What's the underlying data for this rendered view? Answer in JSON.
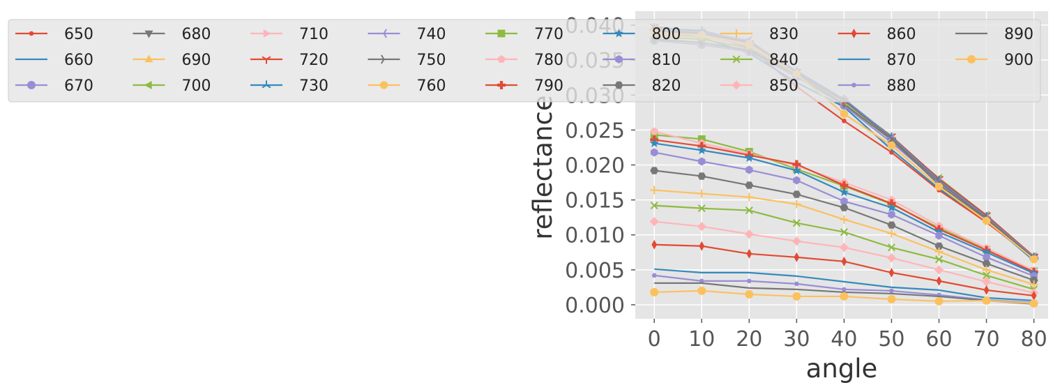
{
  "chart_data": {
    "type": "line",
    "xlabel": "angle",
    "ylabel": "reflectance",
    "x": [
      0,
      10,
      20,
      30,
      40,
      50,
      60,
      70,
      80
    ],
    "xticks": [
      "0",
      "10",
      "20",
      "30",
      "40",
      "50",
      "60",
      "70",
      "80"
    ],
    "yticks": [
      "0.000",
      "0.005",
      "0.010",
      "0.015",
      "0.020",
      "0.025",
      "0.030",
      "0.035",
      "0.040"
    ],
    "xlim": [
      -4,
      83
    ],
    "ylim": [
      -0.002,
      0.042
    ],
    "grid": true,
    "legend_position": "top",
    "legend_columns": 9,
    "series": [
      {
        "name": "650",
        "color": "#E24A33",
        "marker": "point",
        "values": [
          0.0395,
          0.0388,
          0.0368,
          0.0312,
          0.0263,
          0.0218,
          0.0164,
          0.0118,
          0.0066
        ]
      },
      {
        "name": "660",
        "color": "#348ABD",
        "marker": "pixel",
        "values": [
          0.0392,
          0.0382,
          0.036,
          0.0318,
          0.0283,
          0.0222,
          0.0166,
          0.0121,
          0.0063
        ]
      },
      {
        "name": "670",
        "color": "#988ED5",
        "marker": "circle",
        "values": [
          0.0378,
          0.0372,
          0.0362,
          0.0326,
          0.0285,
          0.0232,
          0.0175,
          0.0124,
          0.0067
        ]
      },
      {
        "name": "680",
        "color": "#777777",
        "marker": "triangle_down",
        "values": [
          0.038,
          0.0375,
          0.0364,
          0.0329,
          0.0287,
          0.0236,
          0.0172,
          0.0122,
          0.0068
        ]
      },
      {
        "name": "690",
        "color": "#FBC15E",
        "marker": "triangle_up",
        "values": [
          0.0386,
          0.0383,
          0.0372,
          0.0333,
          0.0291,
          0.024,
          0.0176,
          0.0126,
          0.0069
        ]
      },
      {
        "name": "700",
        "color": "#8EBA42",
        "marker": "triangle_left",
        "values": [
          0.0383,
          0.038,
          0.0367,
          0.033,
          0.029,
          0.0238,
          0.0181,
          0.0128,
          0.0069
        ]
      },
      {
        "name": "710",
        "color": "#FFB5B8",
        "marker": "triangle_right",
        "values": [
          0.0388,
          0.0386,
          0.037,
          0.0331,
          0.0291,
          0.0239,
          0.0179,
          0.0127,
          0.0068
        ]
      },
      {
        "name": "720",
        "color": "#E24A33",
        "marker": "tri_down",
        "values": [
          0.0398,
          0.039,
          0.0374,
          0.0333,
          0.0292,
          0.0241,
          0.018,
          0.0128,
          0.0069
        ]
      },
      {
        "name": "730",
        "color": "#348ABD",
        "marker": "tri_up",
        "values": [
          0.0396,
          0.0392,
          0.0376,
          0.0334,
          0.0294,
          0.024,
          0.0178,
          0.0126,
          0.0068
        ]
      },
      {
        "name": "740",
        "color": "#988ED5",
        "marker": "tri_left",
        "values": [
          0.0394,
          0.039,
          0.0378,
          0.0332,
          0.0293,
          0.0239,
          0.0177,
          0.0125,
          0.0068
        ]
      },
      {
        "name": "750",
        "color": "#777777",
        "marker": "tri_right",
        "values": [
          0.0392,
          0.0388,
          0.0375,
          0.0331,
          0.0292,
          0.0238,
          0.0176,
          0.0124,
          0.0067
        ]
      },
      {
        "name": "760",
        "color": "#FBC15E",
        "marker": "octagon",
        "values": [
          0.039,
          0.0386,
          0.0373,
          0.033,
          0.0273,
          0.0228,
          0.0169,
          0.012,
          0.0065
        ]
      },
      {
        "name": "770",
        "color": "#8EBA42",
        "marker": "square",
        "values": [
          0.0243,
          0.0237,
          0.0219,
          0.0194,
          0.017,
          0.0144,
          0.011,
          0.0079,
          0.0048
        ]
      },
      {
        "name": "780",
        "color": "#FFB5B8",
        "marker": "pentagon",
        "values": [
          0.0248,
          0.0231,
          0.0216,
          0.0199,
          0.0175,
          0.015,
          0.0113,
          0.0081,
          0.0049
        ]
      },
      {
        "name": "790",
        "color": "#E24A33",
        "marker": "plus_filled",
        "values": [
          0.0236,
          0.0227,
          0.0214,
          0.0201,
          0.0171,
          0.0145,
          0.0108,
          0.0078,
          0.0047
        ]
      },
      {
        "name": "800",
        "color": "#348ABD",
        "marker": "star",
        "values": [
          0.0231,
          0.0221,
          0.021,
          0.0192,
          0.0161,
          0.0139,
          0.0104,
          0.0075,
          0.0045
        ]
      },
      {
        "name": "810",
        "color": "#988ED5",
        "marker": "hexagon1",
        "values": [
          0.0218,
          0.0205,
          0.0193,
          0.0178,
          0.0148,
          0.0129,
          0.0099,
          0.0068,
          0.0041
        ]
      },
      {
        "name": "820",
        "color": "#777777",
        "marker": "hexagon2",
        "values": [
          0.0192,
          0.0184,
          0.0171,
          0.0158,
          0.0139,
          0.0114,
          0.0084,
          0.0059,
          0.0035
        ]
      },
      {
        "name": "830",
        "color": "#FBC15E",
        "marker": "plus",
        "values": [
          0.0164,
          0.0159,
          0.0154,
          0.0144,
          0.0122,
          0.0102,
          0.0076,
          0.005,
          0.0029
        ]
      },
      {
        "name": "840",
        "color": "#8EBA42",
        "marker": "x",
        "values": [
          0.0142,
          0.0138,
          0.0135,
          0.0117,
          0.0104,
          0.0082,
          0.0065,
          0.0042,
          0.0022
        ]
      },
      {
        "name": "850",
        "color": "#FFB5B8",
        "marker": "diamond",
        "values": [
          0.0119,
          0.0112,
          0.0101,
          0.0091,
          0.0082,
          0.0067,
          0.005,
          0.0033,
          0.0017
        ]
      },
      {
        "name": "860",
        "color": "#E24A33",
        "marker": "thin_diamond",
        "values": [
          0.0086,
          0.0084,
          0.0073,
          0.0068,
          0.0062,
          0.0046,
          0.0034,
          0.0021,
          0.0013
        ]
      },
      {
        "name": "870",
        "color": "#348ABD",
        "marker": "none",
        "values": [
          0.0051,
          0.0046,
          0.0046,
          0.0041,
          0.0033,
          0.0025,
          0.0021,
          0.001,
          0.0006
        ]
      },
      {
        "name": "880",
        "color": "#988ED5",
        "marker": "point",
        "values": [
          0.0042,
          0.0034,
          0.0034,
          0.003,
          0.0022,
          0.002,
          0.0014,
          0.0007,
          0.0003
        ]
      },
      {
        "name": "890",
        "color": "#777777",
        "marker": "none",
        "values": [
          0.0031,
          0.0031,
          0.0024,
          0.0022,
          0.0018,
          0.0016,
          0.0012,
          0.0006,
          0.0001
        ]
      },
      {
        "name": "900",
        "color": "#FBC15E",
        "marker": "circle",
        "values": [
          0.0018,
          0.002,
          0.0015,
          0.0012,
          0.0012,
          0.0008,
          0.0005,
          0.0006,
          0.0002
        ]
      }
    ]
  }
}
